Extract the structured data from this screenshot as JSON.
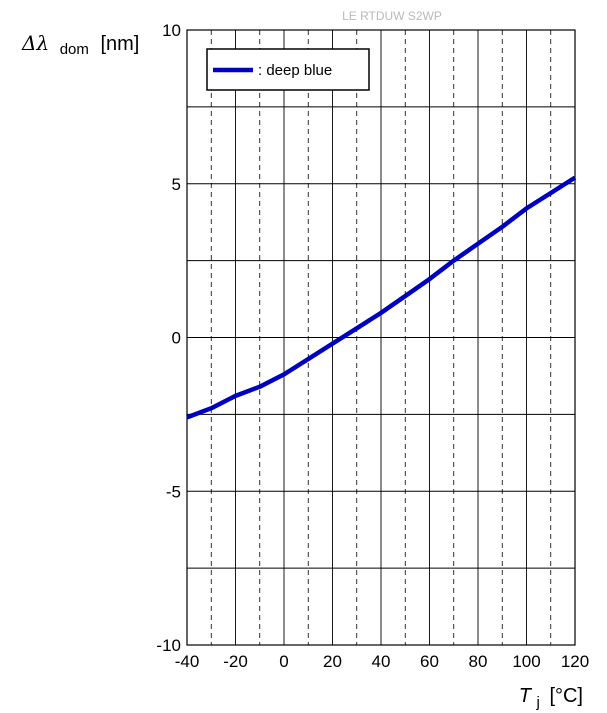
{
  "watermark": "LE RTDUW S2WP",
  "chart_data": {
    "type": "line",
    "ylabel": {
      "symbol": "Δλ",
      "subscript": "dom",
      "unit": "[nm]"
    },
    "xlabel": {
      "symbol": "T",
      "subscript": "j",
      "unit": "[°C]"
    },
    "xlim": [
      -40,
      120
    ],
    "ylim": [
      -10,
      10
    ],
    "x_ticks": [
      "-40",
      "-20",
      "0",
      "20",
      "40",
      "60",
      "80",
      "100",
      "120"
    ],
    "y_ticks": [
      "10",
      "5",
      "0",
      "-5",
      "-10"
    ],
    "grid": true,
    "legend_position": "top-left",
    "series": [
      {
        "name": ": deep blue",
        "color": "#0000c0",
        "x": [
          -40,
          -30,
          -20,
          -10,
          0,
          10,
          20,
          30,
          40,
          50,
          60,
          70,
          80,
          90,
          100,
          110,
          120
        ],
        "y": [
          -2.6,
          -2.3,
          -1.9,
          -1.6,
          -1.2,
          -0.7,
          -0.2,
          0.3,
          0.8,
          1.35,
          1.9,
          2.5,
          3.05,
          3.6,
          4.2,
          4.7,
          5.2
        ]
      }
    ]
  }
}
